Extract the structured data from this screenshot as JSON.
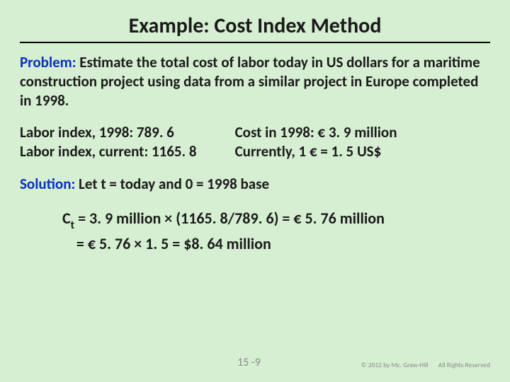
{
  "title": "Example: Cost Index Method",
  "problem": {
    "label": "Problem:",
    "text": " Estimate the total cost of labor today in US dollars for a maritime construction project using data from a similar project in Europe completed in 1998."
  },
  "data": {
    "left": {
      "line1": "Labor index, 1998:   789. 6",
      "line2": "Labor index, current: 1165. 8"
    },
    "right": {
      "line1": "Cost in 1998: € 3. 9 million",
      "line2": "Currently, 1 € = 1. 5 US$"
    }
  },
  "solution": {
    "label": "Solution:",
    "text": " Let t = today and 0 = 1998 base"
  },
  "equation": {
    "lhs_var": "C",
    "lhs_sub": "t",
    "rhs1": " = 3. 9 million × (1165. 8/789. 6) = € 5. 76 million",
    "rhs2_indent": "    ",
    "rhs2": "= € 5. 76 × 1. 5 = $8. 64 million"
  },
  "footer": {
    "page": "15 -9",
    "copyright": "© 2012 by Mc. Graw-Hill",
    "rights": "All Rights Reserved"
  },
  "colors": {
    "background": "#d6efd2",
    "title_text": "#1a1a1a",
    "label_blue": "#0b2fbf",
    "rule": "#000000",
    "footer_text": "#8a8a8a"
  }
}
